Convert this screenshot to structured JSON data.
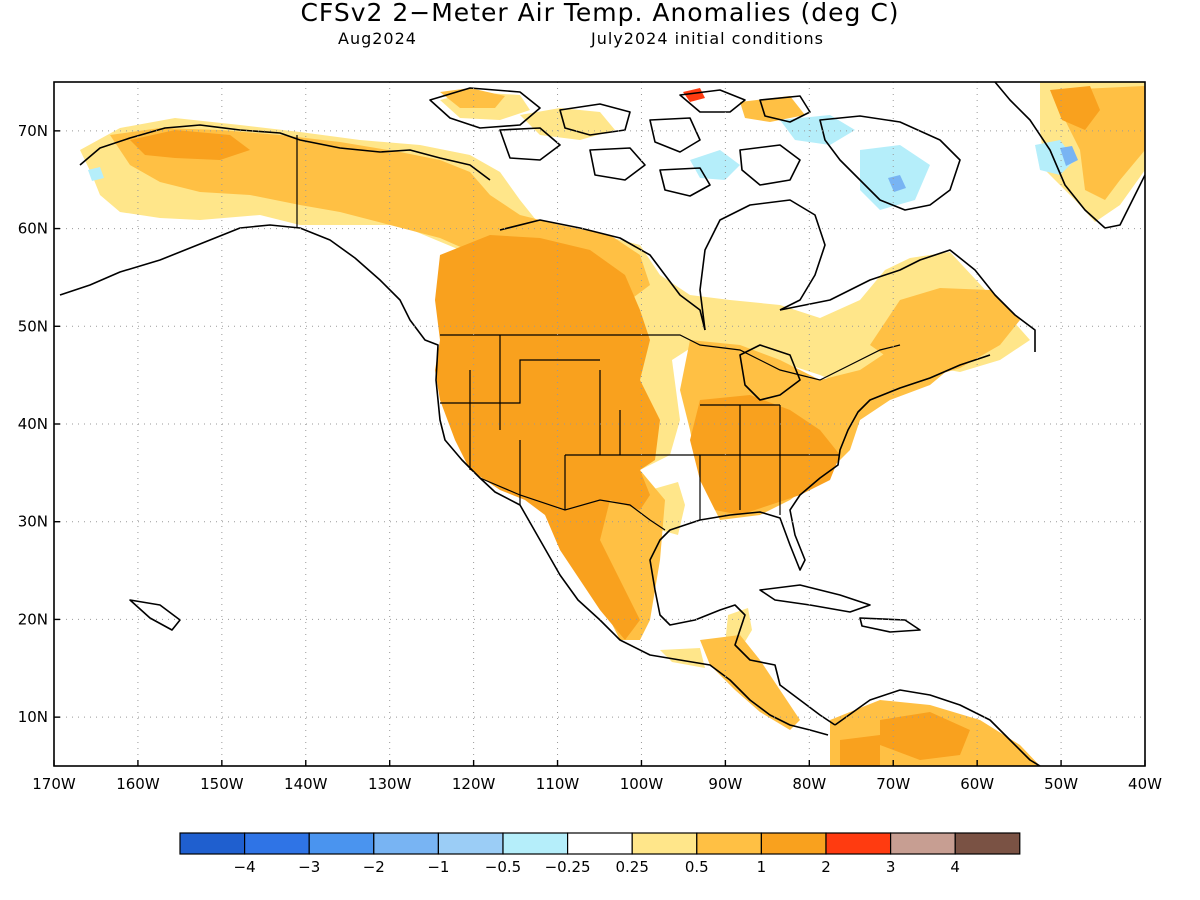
{
  "header": {
    "title": "CFSv2 2−Meter Air Temp. Anomalies (deg C)",
    "valid_month": "Aug2024",
    "init_conditions": "July2024 initial conditions"
  },
  "map": {
    "projection": "cylindrical-equidistant",
    "lon_range": [
      -170,
      -40
    ],
    "lat_range": [
      5,
      75
    ],
    "grid": "dotted",
    "lon_labels": [
      "170W",
      "160W",
      "150W",
      "140W",
      "130W",
      "120W",
      "110W",
      "100W",
      "90W",
      "80W",
      "70W",
      "60W",
      "50W",
      "40W"
    ],
    "lat_labels": [
      "10N",
      "20N",
      "30N",
      "40N",
      "50N",
      "60N",
      "70N"
    ]
  },
  "legend": {
    "colors": [
      "#1f5fcf",
      "#2f74e6",
      "#4a94ef",
      "#78b4f3",
      "#9bcdf6",
      "#b5eefa",
      "#ffffff",
      "#ffe68a",
      "#ffc044",
      "#f9a11e",
      "#ff3b10",
      "#c79e92",
      "#7a5244"
    ],
    "labels": [
      "−4",
      "−3",
      "−2",
      "−1",
      "−0.5",
      "−0.25",
      "0.25",
      "0.5",
      "1",
      "2",
      "3",
      "4"
    ]
  }
}
